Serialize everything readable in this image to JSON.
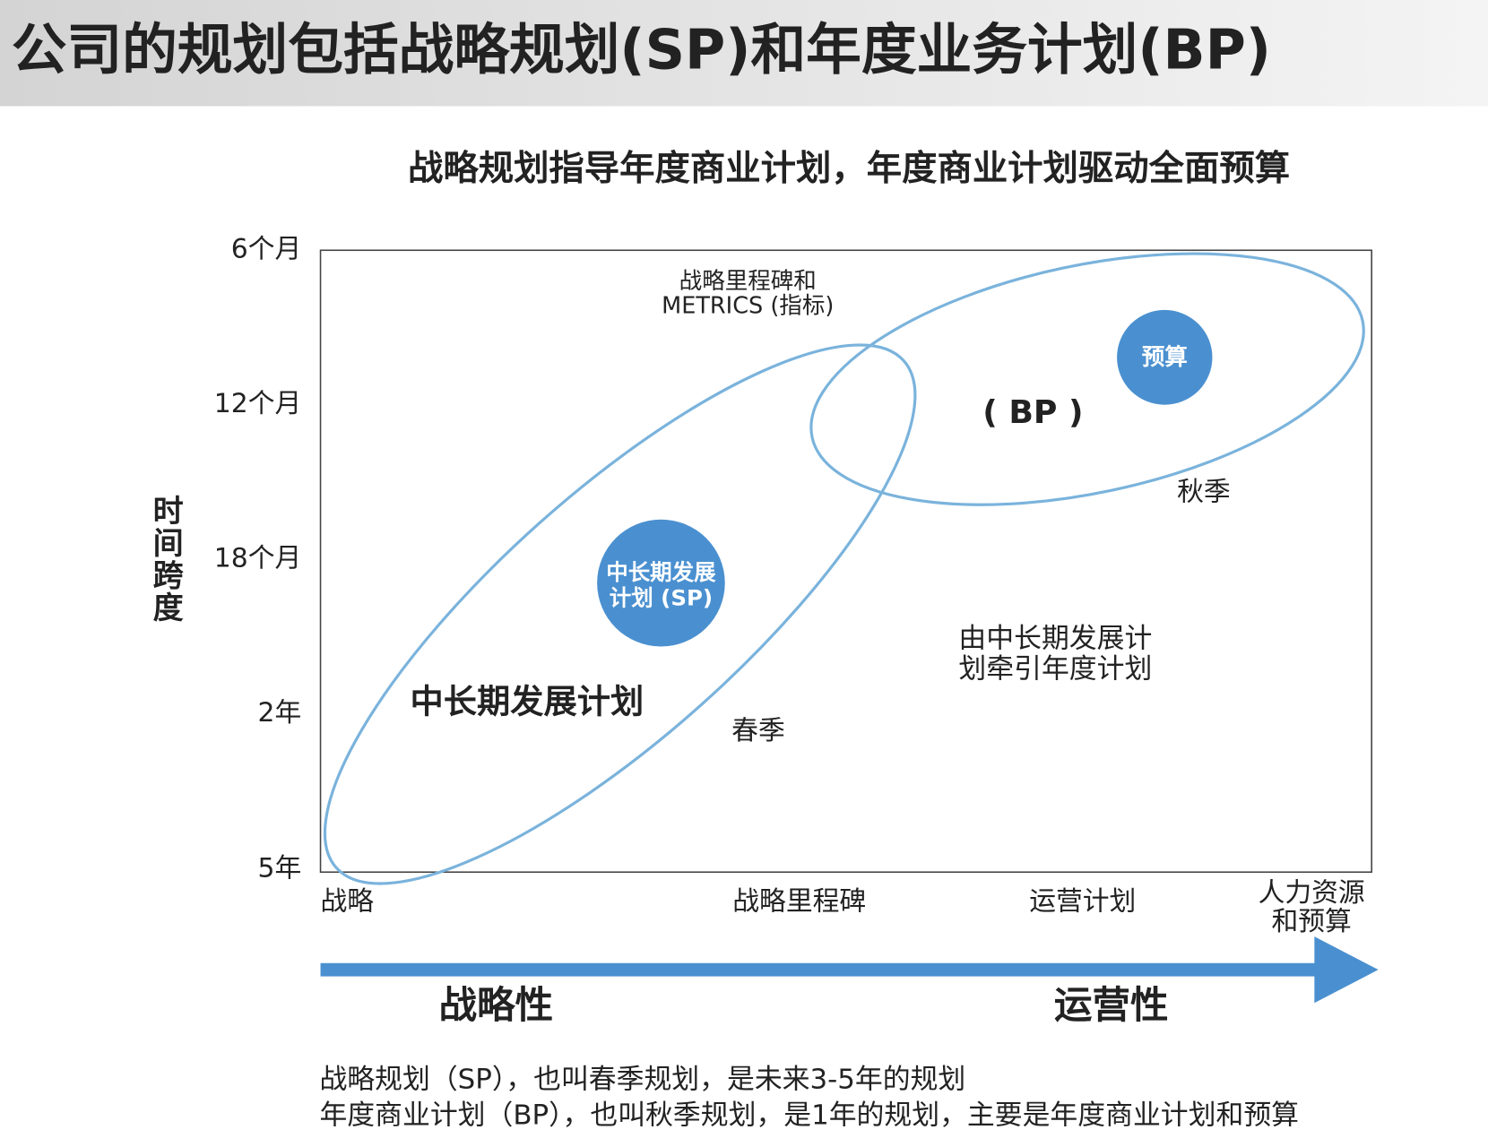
{
  "header": {
    "title": "公司的规划包括战略规划(SP)和年度业务计划(BP)"
  },
  "subtitle": "战略规划指导年度商业计划，年度商业计划驱动全面预算",
  "y_axis": {
    "label": "时间跨度",
    "ticks": [
      "6个月",
      "12个月",
      "18个月",
      "2年",
      "5年"
    ]
  },
  "x_axis": {
    "ticks": [
      "战略",
      "战略里程碑",
      "运营计划",
      [
        "人力资源",
        "和预算"
      ]
    ]
  },
  "nodes": [
    {
      "label": [
        "中长期发展",
        "计划 (SP)"
      ]
    },
    {
      "label": "预算"
    }
  ],
  "annotations": {
    "metrics": [
      "战略里程碑和",
      "METRICS (指标)"
    ],
    "bp": "( BP )",
    "autumn": "秋季",
    "guide": [
      "由中长期发展计",
      "划牵引年度计划"
    ],
    "sp_plan": "中长期发展计划",
    "spring": "春季"
  },
  "arrow": {
    "left": "战略性",
    "right": "运营性"
  },
  "footer": [
    "战略规划（SP），也叫春季规划，是未来3-5年的规划",
    "年度商业计划（BP），也叫秋季规划，是1年的规划，主要是年度商业计划和预算"
  ]
}
